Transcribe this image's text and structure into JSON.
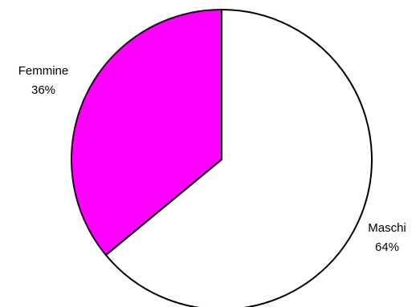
{
  "chart_data": {
    "type": "pie",
    "title": "",
    "slices": [
      {
        "label": "Maschi",
        "value": 64,
        "value_label": "64%",
        "color": "#ffffff"
      },
      {
        "label": "Femmine",
        "value": 36,
        "value_label": "36%",
        "color": "#ff00ff"
      }
    ],
    "start": "12 o'clock",
    "direction": "clockwise",
    "stroke_color": "#000000",
    "legend": "none"
  }
}
